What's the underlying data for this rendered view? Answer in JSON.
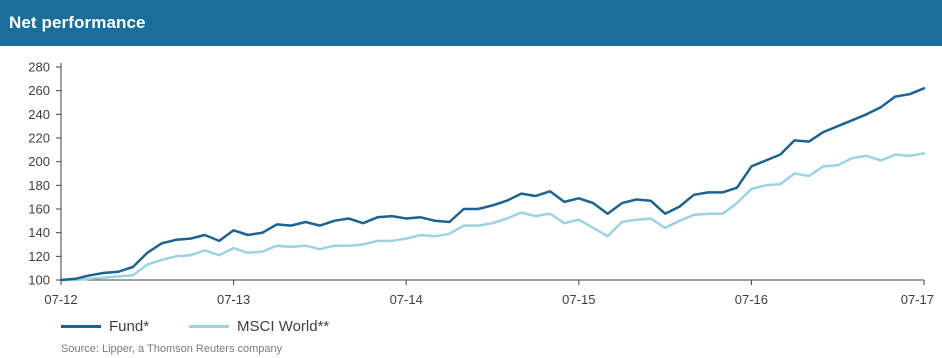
{
  "header": {
    "title": "Net performance",
    "bg_color": "#1B6E9A"
  },
  "source": "Source: Lipper, a Thomson Reuters company",
  "colors": {
    "fund": "#1D6391",
    "msci": "#9DD2E3",
    "axis": "#404040"
  },
  "chart_data": {
    "type": "line",
    "title": "Net performance",
    "xlabel": "",
    "ylabel": "",
    "ylim": [
      100,
      280
    ],
    "yticks": [
      100,
      120,
      140,
      160,
      180,
      200,
      220,
      240,
      260,
      280
    ],
    "xticks": [
      "07-12",
      "07-13",
      "07-14",
      "07-15",
      "07-16",
      "07-17"
    ],
    "grid": false,
    "legend": "bottom-left",
    "x_note": "monthly observations from 07-12 (index 0) to 07-17 (index 60)",
    "series": [
      {
        "name": "Fund*",
        "color": "#1D6391",
        "values": [
          100,
          101,
          104,
          106,
          107,
          111,
          123,
          131,
          134,
          135,
          138,
          133,
          142,
          138,
          140,
          147,
          146,
          149,
          146,
          150,
          152,
          148,
          153,
          154,
          152,
          153,
          150,
          149,
          160,
          160,
          163,
          167,
          173,
          171,
          175,
          166,
          169,
          165,
          156,
          165,
          168,
          167,
          156,
          162,
          172,
          174,
          174,
          178,
          196,
          201,
          206,
          218,
          217,
          225,
          230,
          235,
          240,
          246,
          255,
          257,
          262
        ]
      },
      {
        "name": "MSCI World**",
        "color": "#9DD2E3",
        "values": [
          100,
          100,
          101,
          102,
          103,
          104,
          113,
          117,
          120,
          121,
          125,
          121,
          127,
          123,
          124,
          129,
          128,
          129,
          126,
          129,
          129,
          130,
          133,
          133,
          135,
          138,
          137,
          139,
          146,
          146,
          148,
          152,
          157,
          154,
          156,
          148,
          151,
          144,
          137,
          149,
          151,
          152,
          144,
          150,
          155,
          156,
          156,
          165,
          177,
          180,
          181,
          190,
          188,
          196,
          197,
          203,
          205,
          201,
          206,
          205,
          207
        ]
      }
    ]
  }
}
